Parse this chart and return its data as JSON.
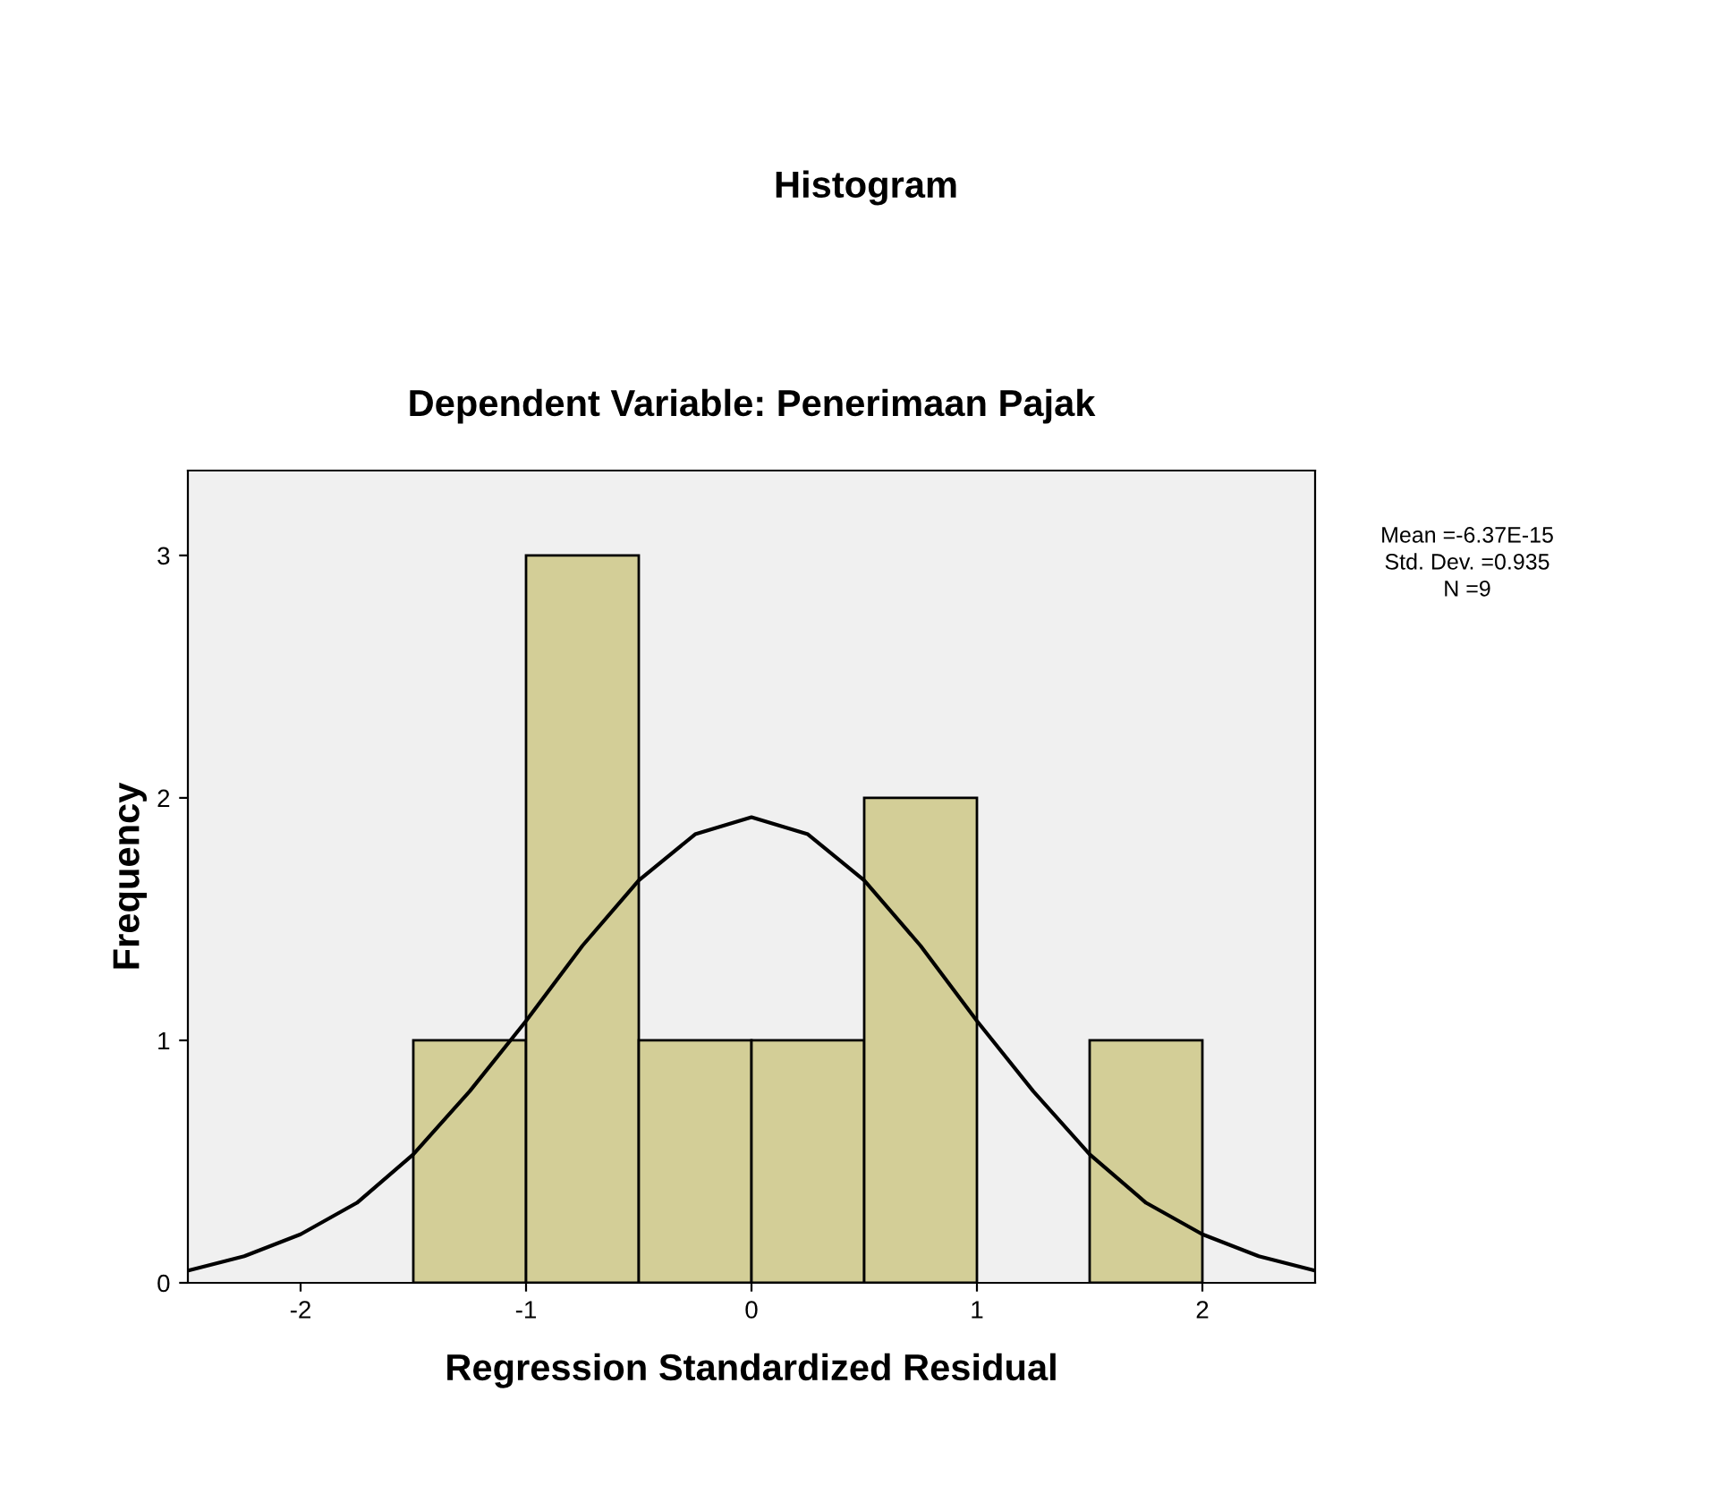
{
  "chart_data": {
    "type": "histogram",
    "title": "Histogram",
    "subtitle": "Dependent Variable: Penerimaan Pajak",
    "xlabel": "Regression Standardized Residual",
    "ylabel": "Frequency",
    "series": [
      {
        "color": "#d3ce97",
        "bins": [
          -1.5,
          -1.0,
          -0.5,
          0.0,
          0.5,
          1.0,
          1.5,
          2.0
        ],
        "values": [
          1,
          3,
          1,
          1,
          2,
          0,
          1
        ]
      },
      {
        "type": "line",
        "color": "#000000",
        "x": [
          -2.5,
          -2.25,
          -2.0,
          -1.75,
          -1.5,
          -1.25,
          -1.0,
          -0.75,
          -0.5,
          -0.25,
          0.0,
          0.25,
          0.5,
          0.75,
          1.0,
          1.25,
          1.5,
          1.75,
          2.0,
          2.25,
          2.5
        ],
        "values": [
          0.05,
          0.11,
          0.2,
          0.33,
          0.53,
          0.79,
          1.08,
          1.39,
          1.66,
          1.85,
          1.92,
          1.85,
          1.66,
          1.39,
          1.08,
          0.79,
          0.53,
          0.33,
          0.2,
          0.11,
          0.05
        ]
      }
    ],
    "xlim": [
      -2.5,
      2.5
    ],
    "ylim": [
      0,
      3.35
    ],
    "xticks": [
      {
        "value": -2,
        "label": "-2"
      },
      {
        "value": -1,
        "label": "-1"
      },
      0,
      1,
      2
    ],
    "yticks": [
      0,
      1,
      2,
      3
    ],
    "grid": false,
    "legend": false,
    "annotations": [
      "Mean =-6.37E-15",
      "Std. Dev. =0.935",
      "N =9"
    ]
  }
}
